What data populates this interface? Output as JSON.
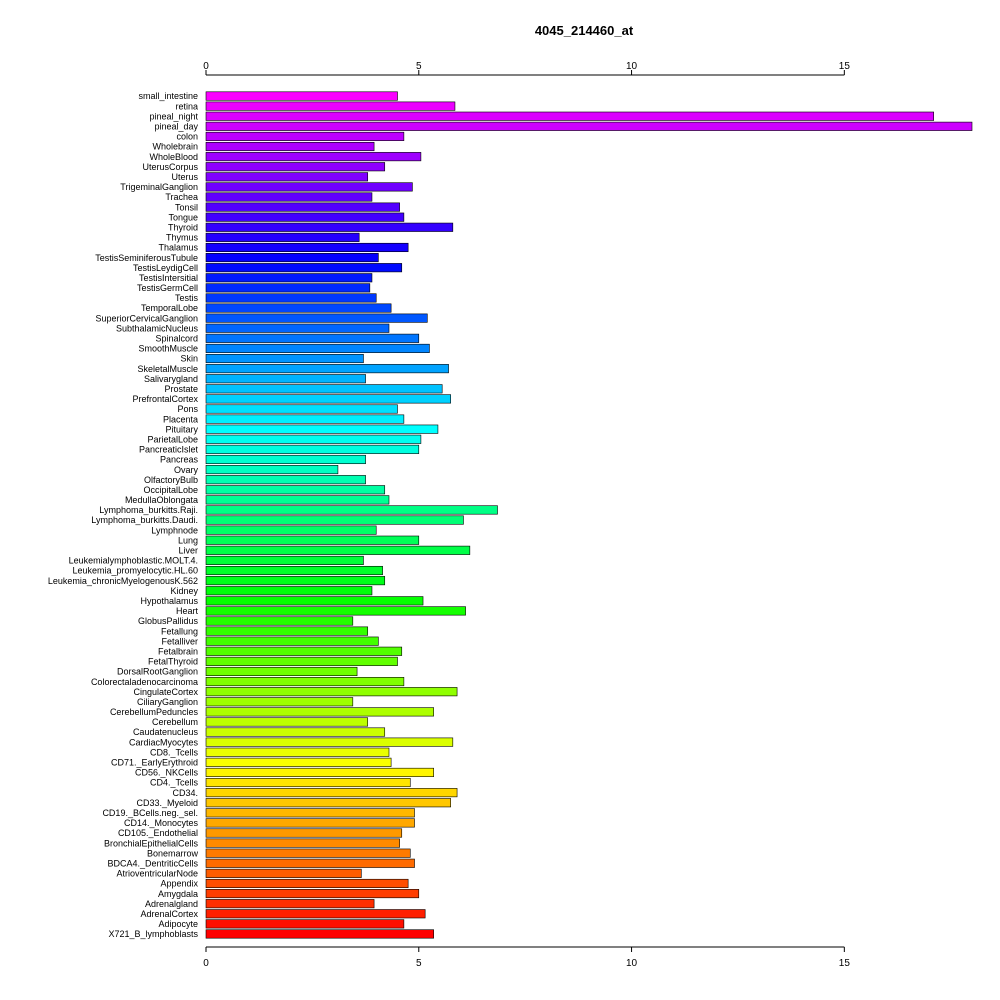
{
  "chart_data": {
    "type": "bar",
    "orientation": "horizontal",
    "title": "4045_214460_at",
    "xlabel": "",
    "ylabel": "",
    "xlim": [
      0,
      18
    ],
    "xticks": [
      0,
      5,
      10,
      15
    ],
    "grid": false,
    "categories": [
      "small_intestine",
      "retina",
      "pineal_night",
      "pineal_day",
      "colon",
      "Wholebrain",
      "WholeBlood",
      "UterusCorpus",
      "Uterus",
      "TrigeminalGanglion",
      "Trachea",
      "Tonsil",
      "Tongue",
      "Thyroid",
      "Thymus",
      "Thalamus",
      "TestisSeminiferousTubule",
      "TestisLeydigCell",
      "TestisIntersitial",
      "TestisGermCell",
      "Testis",
      "TemporalLobe",
      "SuperiorCervicalGanglion",
      "SubthalamicNucleus",
      "Spinalcord",
      "SmoothMuscle",
      "Skin",
      "SkeletalMuscle",
      "Salivarygland",
      "Prostate",
      "PrefrontalCortex",
      "Pons",
      "Placenta",
      "Pituitary",
      "ParietalLobe",
      "PancreaticIslet",
      "Pancreas",
      "Ovary",
      "OlfactoryBulb",
      "OccipitalLobe",
      "MedullaOblongata",
      "Lymphoma_burkitts.Raji.",
      "Lymphoma_burkitts.Daudi.",
      "Lymphnode",
      "Lung",
      "Liver",
      "Leukemialymphoblastic.MOLT.4.",
      "Leukemia_promyelocytic.HL.60",
      "Leukemia_chronicMyelogenousK.562",
      "Kidney",
      "Hypothalamus",
      "Heart",
      "GlobusPallidus",
      "Fetallung",
      "Fetalliver",
      "Fetalbrain",
      "FetalThyroid",
      "DorsalRootGanglion",
      "Colorectaladenocarcinoma",
      "CingulateCortex",
      "CiliaryGanglion",
      "CerebellumPeduncles",
      "Cerebellum",
      "Caudatenucleus",
      "CardiacMyocytes",
      "CD8._Tcells",
      "CD71._EarlyErythroid",
      "CD56._NKCells",
      "CD4._Tcells",
      "CD34.",
      "CD33._Myeloid",
      "CD19._BCells.neg._sel.",
      "CD14._Monocytes",
      "CD105._Endothelial",
      "BronchialEpithelialCells",
      "Bonemarrow",
      "BDCA4._DentriticCells",
      "AtrioventricularNode",
      "Appendix",
      "Amygdala",
      "Adrenalgland",
      "AdrenalCortex",
      "Adipocyte",
      "X721_B_lymphoblasts"
    ],
    "values": [
      4.5,
      5.85,
      17.1,
      18.0,
      4.65,
      3.95,
      5.05,
      4.2,
      3.8,
      4.85,
      3.9,
      4.55,
      4.65,
      5.8,
      3.6,
      4.75,
      4.05,
      4.6,
      3.9,
      3.85,
      4.0,
      4.35,
      5.2,
      4.3,
      5.0,
      5.25,
      3.7,
      5.7,
      3.75,
      5.55,
      5.75,
      4.5,
      4.65,
      5.45,
      5.05,
      5.0,
      3.75,
      3.1,
      3.75,
      4.2,
      4.3,
      6.85,
      6.05,
      4.0,
      5.0,
      6.2,
      3.7,
      4.15,
      4.2,
      3.9,
      5.1,
      6.1,
      3.45,
      3.8,
      4.05,
      4.6,
      4.5,
      3.55,
      4.65,
      5.9,
      3.45,
      5.35,
      3.8,
      4.2,
      5.8,
      4.3,
      4.35,
      5.35,
      4.8,
      5.9,
      5.75,
      4.9,
      4.9,
      4.6,
      4.55,
      4.8,
      4.9,
      3.65,
      4.75,
      5.0,
      3.95,
      5.15,
      4.65,
      5.35
    ],
    "colors": "rainbow"
  }
}
